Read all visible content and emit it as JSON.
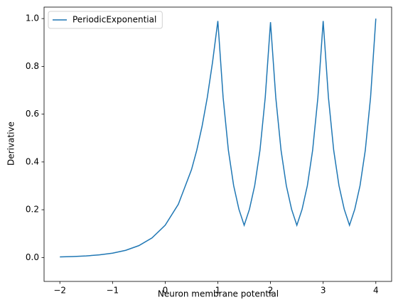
{
  "chart_data": {
    "type": "line",
    "xlabel": "Neuron membrane potential",
    "ylabel": "Derivative",
    "x": [
      -2,
      -1.75,
      -1.5,
      -1.25,
      -1,
      -0.75,
      -0.5,
      -0.25,
      0,
      0.25,
      0.5,
      0.6,
      0.7,
      0.8,
      0.9,
      1.0,
      1.1,
      1.2,
      1.3,
      1.4,
      1.5,
      1.6,
      1.7,
      1.8,
      1.9,
      2.0,
      2.1,
      2.2,
      2.3,
      2.4,
      2.5,
      2.6,
      2.7,
      2.8,
      2.9,
      3.0,
      3.1,
      3.2,
      3.3,
      3.4,
      3.5,
      3.6,
      3.7,
      3.8,
      3.9,
      4.0
    ],
    "series": [
      {
        "name": "PeriodicExponential",
        "color": "#1f77b4",
        "values": [
          0.0025,
          0.0041,
          0.0067,
          0.0111,
          0.0183,
          0.0302,
          0.0498,
          0.0821,
          0.1353,
          0.2231,
          0.3679,
          0.4493,
          0.5488,
          0.6703,
          0.8187,
          0.99,
          0.67,
          0.449,
          0.301,
          0.202,
          0.135,
          0.202,
          0.301,
          0.449,
          0.67,
          0.985,
          0.67,
          0.449,
          0.301,
          0.202,
          0.135,
          0.202,
          0.301,
          0.449,
          0.67,
          0.99,
          0.67,
          0.449,
          0.301,
          0.202,
          0.135,
          0.202,
          0.301,
          0.449,
          0.67,
          1.0
        ]
      }
    ],
    "xlim": [
      -2.3,
      4.3
    ],
    "ylim": [
      -0.1,
      1.048
    ],
    "xticks": [
      {
        "value": -2,
        "label": "−2"
      },
      {
        "value": -1,
        "label": "−1"
      },
      0,
      1,
      2,
      3,
      4
    ],
    "yticks": [
      {
        "value": 0,
        "label": "0.0"
      },
      {
        "value": 0.2,
        "label": "0.2"
      },
      {
        "value": 0.4,
        "label": "0.4"
      },
      {
        "value": 0.6,
        "label": "0.6"
      },
      {
        "value": 0.8,
        "label": "0.8"
      },
      {
        "value": 1,
        "label": "1.0"
      }
    ],
    "legend": "upper left"
  }
}
